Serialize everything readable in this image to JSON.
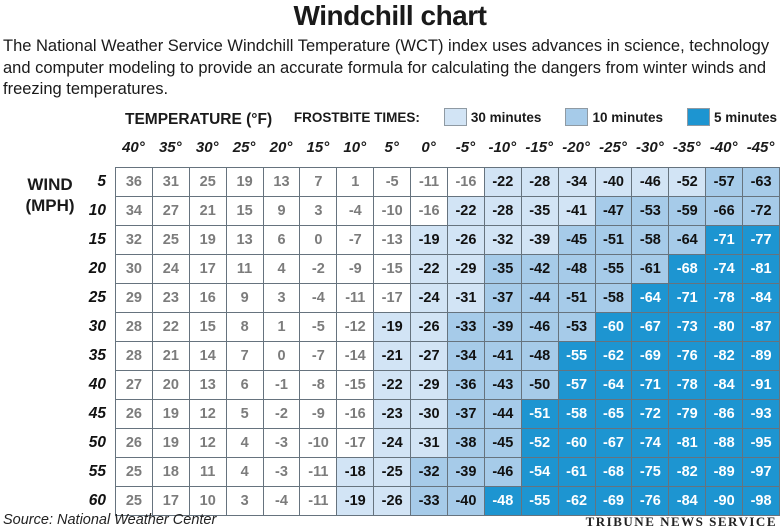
{
  "title": "Windchill chart",
  "description": "The National Weather Service Windchill Temperature (WCT) index uses advances in science, technology and computer modeling to provide an accurate formula for calculating the dangers from winter winds and freezing temperatures.",
  "footer": {
    "source": "Source: National Weather Center",
    "credit": "TRIBUNE NEWS SERVICE"
  },
  "colors": {
    "frostbite_30min": "#d2e4f5",
    "frostbite_10min": "#a6cbe9",
    "frostbite_5min": "#1d95d1",
    "grid_border": "#66737e",
    "muted_value_text": "#7c7c7c"
  },
  "chart_data": {
    "type": "heatmap",
    "title": "Windchill chart",
    "col_axis_label": "TEMPERATURE (°F)",
    "row_axis_label_line1": "WIND",
    "row_axis_label_line2": "(MPH)",
    "temperatures": [
      "40°",
      "35°",
      "30°",
      "25°",
      "20°",
      "15°",
      "10°",
      "5°",
      "0°",
      "-5°",
      "-10°",
      "-15°",
      "-20°",
      "-25°",
      "-30°",
      "-35°",
      "-40°",
      "-45°"
    ],
    "wind_speeds": [
      "5",
      "10",
      "15",
      "20",
      "25",
      "30",
      "35",
      "40",
      "45",
      "50",
      "55",
      "60"
    ],
    "values": [
      [
        36,
        31,
        25,
        19,
        13,
        7,
        1,
        -5,
        -11,
        -16,
        -22,
        -28,
        -34,
        -40,
        -46,
        -52,
        -57,
        -63
      ],
      [
        34,
        27,
        21,
        15,
        9,
        3,
        -4,
        -10,
        -16,
        -22,
        -28,
        -35,
        -41,
        -47,
        -53,
        -59,
        -66,
        -72
      ],
      [
        32,
        25,
        19,
        13,
        6,
        0,
        -7,
        -13,
        -19,
        -26,
        -32,
        -39,
        -45,
        -51,
        -58,
        -64,
        -71,
        -77
      ],
      [
        30,
        24,
        17,
        11,
        4,
        -2,
        -9,
        -15,
        -22,
        -29,
        -35,
        -42,
        -48,
        -55,
        -61,
        -68,
        -74,
        -81
      ],
      [
        29,
        23,
        16,
        9,
        3,
        -4,
        -11,
        -17,
        -24,
        -31,
        -37,
        -44,
        -51,
        -58,
        -64,
        -71,
        -78,
        -84
      ],
      [
        28,
        22,
        15,
        8,
        1,
        -5,
        -12,
        -19,
        -26,
        -33,
        -39,
        -46,
        -53,
        -60,
        -67,
        -73,
        -80,
        -87
      ],
      [
        28,
        21,
        14,
        7,
        0,
        -7,
        -14,
        -21,
        -27,
        -34,
        -41,
        -48,
        -55,
        -62,
        -69,
        -76,
        -82,
        -89
      ],
      [
        27,
        20,
        13,
        6,
        -1,
        -8,
        -15,
        -22,
        -29,
        -36,
        -43,
        -50,
        -57,
        -64,
        -71,
        -78,
        -84,
        -91
      ],
      [
        26,
        19,
        12,
        5,
        -2,
        -9,
        -16,
        -23,
        -30,
        -37,
        -44,
        -51,
        -58,
        -65,
        -72,
        -79,
        -86,
        -93
      ],
      [
        26,
        19,
        12,
        4,
        -3,
        -10,
        -17,
        -24,
        -31,
        -38,
        -45,
        -52,
        -60,
        -67,
        -74,
        -81,
        -88,
        -95
      ],
      [
        25,
        18,
        11,
        4,
        -3,
        -11,
        -18,
        -25,
        -32,
        -39,
        -46,
        -54,
        -61,
        -68,
        -75,
        -82,
        -89,
        -97
      ],
      [
        25,
        17,
        10,
        3,
        -4,
        -11,
        -19,
        -26,
        -33,
        -40,
        -48,
        -55,
        -62,
        -69,
        -76,
        -84,
        -90,
        -98
      ]
    ],
    "shading_codes_legend": {
      "w": "none",
      "l": "30 minutes",
      "m": "10 minutes",
      "d": "5 minutes"
    },
    "shading": [
      "wwwwwwwwwwllllllmm",
      "wwwwwwwwwllllmmmmm",
      "wwwwwwwwllllmmmmdd",
      "wwwwwwwwllmmmmmddd",
      "wwwwwwwwllmmmmdddd",
      "wwwwwwwllmmmmddddd",
      "wwwwwwwllmmmdddddd",
      "wwwwwwwllmmmdddddd",
      "wwwwwwwllmmddddddd",
      "wwwwwwwllmmddddddd",
      "wwwwwwllmmmddddddd",
      "wwwwwwllmmdddddddd"
    ],
    "legend": {
      "label": "FROSTBITE TIMES:",
      "items": [
        {
          "label": "30 minutes",
          "color": "#d2e4f5"
        },
        {
          "label": "10 minutes",
          "color": "#a6cbe9"
        },
        {
          "label": "5 minutes",
          "color": "#1d95d1"
        }
      ]
    }
  }
}
